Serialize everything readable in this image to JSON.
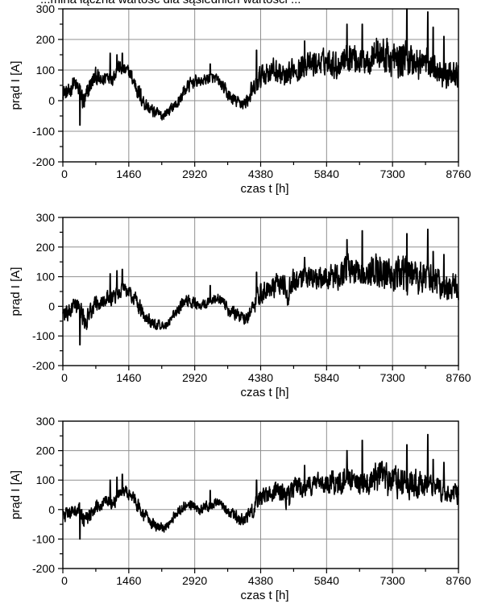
{
  "page": {
    "caption": "...mina łączna wartość dla sąsiednich wartości ..."
  },
  "chart_data": [
    {
      "type": "line",
      "title": "",
      "xlabel": "czas t [h]",
      "ylabel": "prąd I [A]",
      "xlim": [
        0,
        8760
      ],
      "ylim": [
        -200,
        300
      ],
      "xticks": [
        "0",
        "1460",
        "2920",
        "4380",
        "5840",
        "7300",
        "8760"
      ],
      "yticks": [
        "300",
        "200",
        "100",
        "0",
        "-100",
        "-200"
      ],
      "grid": true,
      "series": [
        {
          "x": [
            0,
            120,
            240,
            360,
            480,
            600,
            730,
            860,
            980,
            1100,
            1220,
            1340,
            1460,
            1580,
            1700,
            1820,
            1940,
            2060,
            2190,
            2320,
            2440,
            2560,
            2680,
            2800,
            2920,
            3040,
            3160,
            3280,
            3400,
            3520,
            3650,
            3780,
            3900,
            4020,
            4140,
            4260,
            4380,
            4500,
            4620,
            4740,
            4860,
            4980,
            5110,
            5240,
            5360,
            5480,
            5600,
            5720,
            5840,
            5960,
            6080,
            6200,
            6320,
            6440,
            6570,
            6700,
            6820,
            6940,
            7060,
            7180,
            7300,
            7420,
            7540,
            7660,
            7780,
            7900,
            8030,
            8160,
            8280,
            8400,
            8520,
            8640,
            8760
          ],
          "y": [
            30,
            20,
            60,
            35,
            -10,
            50,
            80,
            60,
            85,
            75,
            110,
            100,
            95,
            60,
            20,
            -10,
            -30,
            -40,
            -50,
            -35,
            -20,
            -5,
            30,
            50,
            65,
            60,
            70,
            75,
            70,
            50,
            20,
            0,
            -5,
            -10,
            15,
            40,
            80,
            90,
            100,
            95,
            85,
            60,
            110,
            100,
            120,
            115,
            120,
            125,
            130,
            130,
            110,
            140,
            150,
            145,
            130,
            135,
            140,
            160,
            150,
            140,
            135,
            130,
            140,
            135,
            125,
            120,
            130,
            115,
            110,
            90,
            75,
            95,
            80
          ],
          "amp": [
            40,
            50,
            45,
            60,
            70,
            55,
            50,
            45,
            40,
            45,
            40,
            40,
            35,
            50,
            55,
            45,
            40,
            35,
            30,
            30,
            30,
            35,
            40,
            40,
            35,
            30,
            30,
            30,
            30,
            35,
            40,
            40,
            35,
            40,
            45,
            60,
            70,
            70,
            70,
            70,
            70,
            80,
            70,
            70,
            70,
            70,
            70,
            70,
            70,
            80,
            80,
            80,
            90,
            90,
            80,
            80,
            90,
            100,
            100,
            110,
            100,
            100,
            110,
            100,
            100,
            100,
            90,
            80,
            80,
            80,
            80,
            70,
            70
          ],
          "spikes": [
            [
              380,
              -80
            ],
            [
              1050,
              155
            ],
            [
              1200,
              150
            ],
            [
              1320,
              155
            ],
            [
              3260,
              120
            ],
            [
              4170,
              60
            ],
            [
              4290,
              165
            ],
            [
              5350,
              195
            ],
            [
              6290,
              250
            ],
            [
              6630,
              250
            ],
            [
              7620,
              300
            ],
            [
              8080,
              290
            ],
            [
              8200,
              240
            ],
            [
              8440,
              210
            ]
          ]
        }
      ]
    },
    {
      "type": "line",
      "title": "",
      "xlabel": "czas t [h]",
      "ylabel": "prąd I [A]",
      "xlim": [
        0,
        8760
      ],
      "ylim": [
        -200,
        300
      ],
      "xticks": [
        "0",
        "1460",
        "2920",
        "4380",
        "5840",
        "7300",
        "8760"
      ],
      "yticks": [
        "300",
        "200",
        "100",
        "0",
        "-100",
        "-200"
      ],
      "grid": true,
      "series": [
        {
          "x": [
            0,
            120,
            240,
            360,
            480,
            600,
            730,
            860,
            980,
            1100,
            1220,
            1340,
            1460,
            1580,
            1700,
            1820,
            1940,
            2060,
            2190,
            2320,
            2440,
            2560,
            2680,
            2800,
            2920,
            3040,
            3160,
            3280,
            3400,
            3520,
            3650,
            3780,
            3900,
            4020,
            4140,
            4260,
            4380,
            4500,
            4620,
            4740,
            4860,
            4980,
            5110,
            5240,
            5360,
            5480,
            5600,
            5720,
            5840,
            5960,
            6080,
            6200,
            6320,
            6440,
            6570,
            6700,
            6820,
            6940,
            7060,
            7180,
            7300,
            7420,
            7540,
            7660,
            7780,
            7900,
            8030,
            8160,
            8280,
            8400,
            8520,
            8640,
            8760
          ],
          "y": [
            -20,
            -30,
            0,
            -10,
            -50,
            -20,
            10,
            20,
            30,
            25,
            40,
            60,
            45,
            30,
            -5,
            -30,
            -50,
            -60,
            -70,
            -60,
            -30,
            -10,
            10,
            20,
            10,
            0,
            10,
            20,
            30,
            20,
            -10,
            -20,
            -30,
            -40,
            -20,
            10,
            50,
            60,
            70,
            75,
            70,
            40,
            80,
            85,
            90,
            95,
            100,
            100,
            100,
            100,
            90,
            110,
            120,
            115,
            110,
            105,
            110,
            130,
            120,
            115,
            110,
            105,
            110,
            105,
            100,
            95,
            100,
            90,
            85,
            70,
            55,
            70,
            55
          ],
          "amp": [
            45,
            50,
            45,
            60,
            70,
            55,
            50,
            45,
            40,
            45,
            40,
            40,
            35,
            50,
            55,
            45,
            40,
            35,
            30,
            30,
            30,
            35,
            40,
            40,
            35,
            30,
            30,
            30,
            30,
            35,
            40,
            40,
            35,
            40,
            45,
            60,
            70,
            70,
            70,
            70,
            70,
            80,
            70,
            70,
            70,
            70,
            70,
            70,
            70,
            80,
            80,
            80,
            90,
            90,
            80,
            80,
            90,
            100,
            100,
            110,
            100,
            100,
            110,
            100,
            100,
            100,
            90,
            80,
            80,
            80,
            80,
            70,
            70
          ],
          "spikes": [
            [
              380,
              -130
            ],
            [
              1050,
              110
            ],
            [
              1200,
              120
            ],
            [
              1320,
              125
            ],
            [
              3260,
              70
            ],
            [
              4170,
              -20
            ],
            [
              4290,
              115
            ],
            [
              5350,
              165
            ],
            [
              6290,
              225
            ],
            [
              6630,
              255
            ],
            [
              7620,
              245
            ],
            [
              8080,
              260
            ],
            [
              8200,
              185
            ],
            [
              8440,
              175
            ]
          ]
        }
      ]
    },
    {
      "type": "line",
      "title": "",
      "xlabel": "czas t [h]",
      "ylabel": "prąd I [A]",
      "xlim": [
        0,
        8760
      ],
      "ylim": [
        -200,
        300
      ],
      "xticks": [
        "0",
        "1460",
        "2920",
        "4380",
        "5840",
        "7300",
        "8760"
      ],
      "yticks": [
        "300",
        "200",
        "100",
        "0",
        "-100",
        "-200"
      ],
      "grid": true,
      "series": [
        {
          "x": [
            0,
            120,
            240,
            360,
            480,
            600,
            730,
            860,
            980,
            1100,
            1220,
            1340,
            1460,
            1580,
            1700,
            1820,
            1940,
            2060,
            2190,
            2320,
            2440,
            2560,
            2680,
            2800,
            2920,
            3040,
            3160,
            3280,
            3400,
            3520,
            3650,
            3780,
            3900,
            4020,
            4140,
            4260,
            4380,
            4500,
            4620,
            4740,
            4860,
            4980,
            5110,
            5240,
            5360,
            5480,
            5600,
            5720,
            5840,
            5960,
            6080,
            6200,
            6320,
            6440,
            6570,
            6700,
            6820,
            6940,
            7060,
            7180,
            7300,
            7420,
            7540,
            7660,
            7780,
            7900,
            8030,
            8160,
            8280,
            8400,
            8520,
            8640,
            8760
          ],
          "y": [
            -10,
            -20,
            5,
            -5,
            -40,
            -15,
            15,
            20,
            30,
            25,
            45,
            60,
            50,
            35,
            0,
            -25,
            -45,
            -55,
            -65,
            -55,
            -25,
            -5,
            10,
            20,
            10,
            0,
            10,
            15,
            25,
            15,
            -10,
            -20,
            -30,
            -35,
            -15,
            10,
            45,
            55,
            60,
            65,
            60,
            35,
            70,
            75,
            80,
            85,
            90,
            90,
            90,
            90,
            80,
            95,
            105,
            100,
            95,
            95,
            100,
            110,
            105,
            100,
            95,
            90,
            95,
            90,
            85,
            80,
            85,
            80,
            75,
            60,
            50,
            60,
            45
          ],
          "amp": [
            40,
            45,
            40,
            55,
            60,
            50,
            45,
            40,
            40,
            45,
            40,
            40,
            35,
            45,
            50,
            40,
            35,
            30,
            30,
            30,
            30,
            30,
            35,
            35,
            30,
            30,
            30,
            30,
            30,
            30,
            35,
            35,
            35,
            35,
            40,
            55,
            60,
            60,
            60,
            60,
            60,
            70,
            60,
            60,
            60,
            60,
            60,
            60,
            60,
            70,
            70,
            70,
            80,
            80,
            70,
            70,
            80,
            90,
            90,
            100,
            90,
            90,
            100,
            90,
            90,
            90,
            80,
            70,
            70,
            70,
            70,
            60,
            60
          ],
          "spikes": [
            [
              380,
              -100
            ],
            [
              1050,
              100
            ],
            [
              1200,
              110
            ],
            [
              1320,
              120
            ],
            [
              3260,
              65
            ],
            [
              4170,
              -10
            ],
            [
              4290,
              100
            ],
            [
              5350,
              150
            ],
            [
              6290,
              200
            ],
            [
              6630,
              235
            ],
            [
              7620,
              220
            ],
            [
              8080,
              255
            ],
            [
              8200,
              170
            ],
            [
              8440,
              160
            ]
          ]
        }
      ]
    }
  ]
}
